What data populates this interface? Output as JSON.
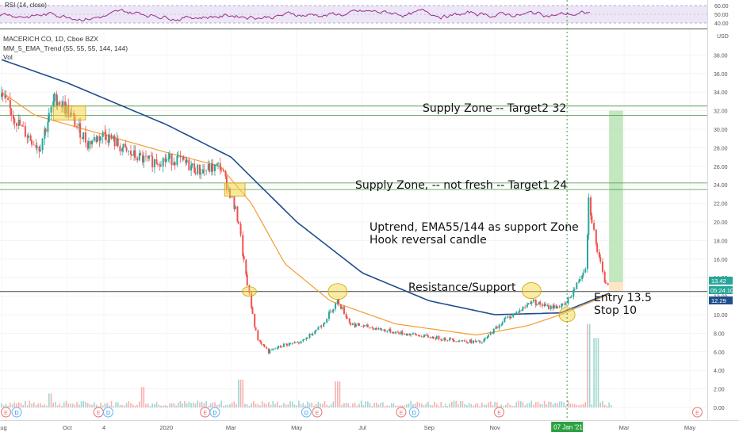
{
  "rsi_pane": {
    "label": "RSI (14, close)",
    "scale": [
      "60.00",
      "50.00",
      "40.00"
    ]
  },
  "header": {
    "title": "MACERICH CO, 1D, Cboe BZX",
    "indicator": "MM_5_EMA_Trend (55, 55, 55, 144, 144)",
    "volume": "Vol",
    "currency": "USD"
  },
  "colors": {
    "candle_up": "#26a69a",
    "candle_down": "#ef5350",
    "ema55": "#f39c32",
    "ema144": "#1f4e8c",
    "supply_line": "#5aa05a",
    "target_fill": "#b9e3b3",
    "stop_fill": "#ffe2bd",
    "circle": "#f5d33a",
    "rsi_line": "#9b2d8a"
  },
  "chart_data": {
    "type": "candlestick",
    "title": "MACERICH CO, 1D, Cboe BZX",
    "ylim": [
      0,
      40
    ],
    "y_ticks": [
      "38.00",
      "36.00",
      "34.00",
      "32.00",
      "30.00",
      "28.00",
      "26.00",
      "24.00",
      "22.00",
      "20.00",
      "18.00",
      "16.00",
      "14.00",
      "12.00",
      "10.00",
      "8.00",
      "6.00",
      "4.00",
      "2.00",
      "0.00"
    ],
    "x_ticks": [
      "Aug",
      "Oct",
      "4",
      "2020",
      "Mar",
      "May",
      "Jul",
      "Sep",
      "Nov",
      "07 Jan '21",
      "Mar",
      "May"
    ],
    "price_labels": [
      "13.42",
      "05:24:10",
      "12.29"
    ],
    "price_path": [
      {
        "date": "2019-08-01",
        "price": 33.5
      },
      {
        "date": "2019-08-20",
        "price": 30.0
      },
      {
        "date": "2019-09-05",
        "price": 28.0
      },
      {
        "date": "2019-09-20",
        "price": 33.5
      },
      {
        "date": "2019-10-01",
        "price": 32.0
      },
      {
        "date": "2019-10-20",
        "price": 28.5
      },
      {
        "date": "2019-11-05",
        "price": 29.5
      },
      {
        "date": "2019-11-25",
        "price": 27.5
      },
      {
        "date": "2019-12-15",
        "price": 26.5
      },
      {
        "date": "2020-01-10",
        "price": 26.8
      },
      {
        "date": "2020-02-01",
        "price": 25.5
      },
      {
        "date": "2020-02-20",
        "price": 26.0
      },
      {
        "date": "2020-02-28",
        "price": 23.5
      },
      {
        "date": "2020-03-08",
        "price": 20.0
      },
      {
        "date": "2020-03-15",
        "price": 14.0
      },
      {
        "date": "2020-03-25",
        "price": 7.5
      },
      {
        "date": "2020-04-05",
        "price": 6.0
      },
      {
        "date": "2020-04-20",
        "price": 6.8
      },
      {
        "date": "2020-05-05",
        "price": 7.0
      },
      {
        "date": "2020-05-25",
        "price": 9.0
      },
      {
        "date": "2020-06-08",
        "price": 11.5
      },
      {
        "date": "2020-06-20",
        "price": 9.0
      },
      {
        "date": "2020-07-10",
        "price": 8.6
      },
      {
        "date": "2020-08-01",
        "price": 8.1
      },
      {
        "date": "2020-09-01",
        "price": 7.6
      },
      {
        "date": "2020-10-01",
        "price": 7.2
      },
      {
        "date": "2020-10-20",
        "price": 7.0
      },
      {
        "date": "2020-11-10",
        "price": 9.5
      },
      {
        "date": "2020-11-25",
        "price": 10.5
      },
      {
        "date": "2020-12-05",
        "price": 11.5
      },
      {
        "date": "2020-12-20",
        "price": 10.8
      },
      {
        "date": "2021-01-05",
        "price": 11.0
      },
      {
        "date": "2021-01-15",
        "price": 13.0
      },
      {
        "date": "2021-01-25",
        "price": 15.5
      },
      {
        "date": "2021-01-27",
        "price": 22.5
      },
      {
        "date": "2021-02-03",
        "price": 17.5
      },
      {
        "date": "2021-02-10",
        "price": 13.8
      },
      {
        "date": "2021-02-15",
        "price": 13.2
      }
    ],
    "ema55": [
      {
        "date": "2019-08-01",
        "price": 34.0
      },
      {
        "date": "2019-09-01",
        "price": 31.5
      },
      {
        "date": "2019-11-01",
        "price": 29.5
      },
      {
        "date": "2020-01-01",
        "price": 27.5
      },
      {
        "date": "2020-02-20",
        "price": 26.0
      },
      {
        "date": "2020-03-20",
        "price": 22.0
      },
      {
        "date": "2020-04-20",
        "price": 15.5
      },
      {
        "date": "2020-06-01",
        "price": 11.5
      },
      {
        "date": "2020-08-01",
        "price": 9.0
      },
      {
        "date": "2020-10-15",
        "price": 7.8
      },
      {
        "date": "2020-12-01",
        "price": 8.8
      },
      {
        "date": "2021-01-01",
        "price": 10.0
      },
      {
        "date": "2021-02-15",
        "price": 12.2
      }
    ],
    "ema144": [
      {
        "date": "2019-08-01",
        "price": 37.5
      },
      {
        "date": "2019-10-01",
        "price": 35.0
      },
      {
        "date": "2020-01-01",
        "price": 30.5
      },
      {
        "date": "2020-03-01",
        "price": 27.0
      },
      {
        "date": "2020-05-01",
        "price": 20.0
      },
      {
        "date": "2020-07-01",
        "price": 14.5
      },
      {
        "date": "2020-09-01",
        "price": 11.5
      },
      {
        "date": "2020-11-01",
        "price": 10.0
      },
      {
        "date": "2021-01-01",
        "price": 10.2
      },
      {
        "date": "2021-02-15",
        "price": 12.3
      }
    ],
    "volume_spikes": [
      {
        "date": "2019-09-15",
        "value": 1.5
      },
      {
        "date": "2019-12-10",
        "value": 2.2
      },
      {
        "date": "2020-03-10",
        "value": 3.0
      },
      {
        "date": "2020-06-08",
        "value": 2.8
      },
      {
        "date": "2021-01-27",
        "value": 9.0
      },
      {
        "date": "2021-02-03",
        "value": 7.5
      }
    ]
  },
  "annotations": {
    "supply2": "Supply  Zone -- Target2 32",
    "supply1": "Supply  Zone, -- not fresh -- Target1 24",
    "trend_line1": "Uptrend, EMA55/144 as support Zone",
    "trend_line2": "Hook reversal candle",
    "resistance": "Resistance/Support",
    "entry": "Entry 13.5",
    "stop": "Stop 10"
  },
  "levels": {
    "supply2_top": 32.5,
    "supply2_bottom": 31.5,
    "supply1_top": 24.2,
    "supply1_bottom": 23.5,
    "resistance": 12.5,
    "entry": 13.5,
    "stop": 10,
    "target2": 32
  },
  "earnings_markers": [
    {
      "date": "2019-08-05",
      "label": "E"
    },
    {
      "date": "2019-08-15",
      "label": "D"
    },
    {
      "date": "2019-10-30",
      "label": "E"
    },
    {
      "date": "2019-11-08",
      "label": "D"
    },
    {
      "date": "2020-02-06",
      "label": "E"
    },
    {
      "date": "2020-02-15",
      "label": "D"
    },
    {
      "date": "2020-05-10",
      "label": "D"
    },
    {
      "date": "2020-05-20",
      "label": "E"
    },
    {
      "date": "2020-08-06",
      "label": "E"
    },
    {
      "date": "2020-08-18",
      "label": "D"
    },
    {
      "date": "2020-11-05",
      "label": "E"
    },
    {
      "date": "2021-05-08",
      "label": "E"
    }
  ]
}
